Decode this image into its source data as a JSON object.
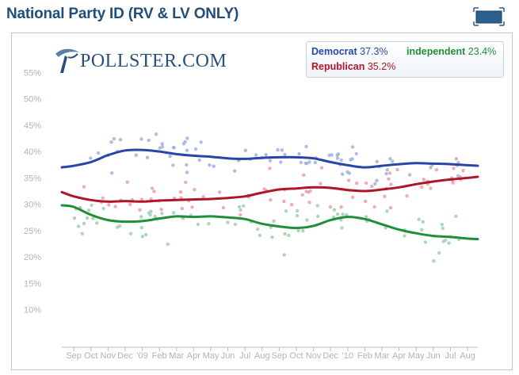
{
  "title": "National Party ID (RV & LV ONLY)",
  "logo_text": "POLLSTER.COM",
  "colors": {
    "democrat": "#2845a8",
    "republican": "#b01527",
    "independent": "#1f8f3a",
    "title": "#1f4e7a"
  },
  "chart_data": {
    "type": "line",
    "title": "National Party ID (RV & LV ONLY)",
    "xlabel": "",
    "ylabel": "",
    "ylim": [
      5,
      60
    ],
    "y_ticks": [
      "55%",
      "50%",
      "45%",
      "40%",
      "35%",
      "30%",
      "25%",
      "20%",
      "15%",
      "10%"
    ],
    "y_tick_values": [
      55,
      50,
      45,
      40,
      35,
      30,
      25,
      20,
      15,
      10
    ],
    "x_ticks": [
      "Sep",
      "Oct",
      "Nov",
      "Dec",
      "'09",
      "Feb",
      "Mar",
      "Apr",
      "May",
      "Jun",
      "Jul",
      "Aug",
      "Sep",
      "Oct",
      "Nov",
      "Dec",
      "'10",
      "Feb",
      "Mar",
      "Apr",
      "May",
      "Jun",
      "Jul",
      "Aug"
    ],
    "x_tick_positions": [
      1,
      2,
      3,
      4,
      5,
      6,
      7,
      8,
      9,
      10,
      11,
      12,
      13,
      14,
      15,
      16,
      17,
      18,
      19,
      20,
      21,
      22,
      23,
      24
    ],
    "xlim": [
      0.3,
      24.6
    ],
    "grid": false,
    "legend_position": "top-right",
    "series": [
      {
        "name": "Democrat",
        "latest": "37.3%",
        "color": "#2845a8",
        "x": [
          0.3,
          1,
          2,
          3,
          4,
          5,
          6,
          7,
          8,
          9,
          10,
          11,
          12,
          13,
          14,
          15,
          16,
          17,
          18,
          19,
          20,
          21,
          22,
          23,
          24,
          24.6
        ],
        "values": [
          37.0,
          37.3,
          38.0,
          39.3,
          40.2,
          40.3,
          40.0,
          39.5,
          39.2,
          39.0,
          38.7,
          38.6,
          38.8,
          38.9,
          38.9,
          38.7,
          38.0,
          37.4,
          37.0,
          37.3,
          37.6,
          37.8,
          37.7,
          37.6,
          37.4,
          37.3
        ]
      },
      {
        "name": "Republican",
        "latest": "35.2%",
        "color": "#b01527",
        "x": [
          0.3,
          1,
          2,
          3,
          4,
          5,
          6,
          7,
          8,
          9,
          10,
          11,
          12,
          13,
          14,
          15,
          16,
          17,
          18,
          19,
          20,
          21,
          22,
          23,
          24,
          24.6
        ],
        "values": [
          32.3,
          31.5,
          30.8,
          30.5,
          30.6,
          30.5,
          30.7,
          30.8,
          30.9,
          31.0,
          31.2,
          31.5,
          32.2,
          32.8,
          33.0,
          33.2,
          33.1,
          32.7,
          32.5,
          32.8,
          33.2,
          33.8,
          34.3,
          34.7,
          35.0,
          35.2
        ]
      },
      {
        "name": "independent",
        "latest": "23.4%",
        "color": "#1f8f3a",
        "x": [
          0.3,
          1,
          2,
          3,
          4,
          5,
          6,
          7,
          8,
          9,
          10,
          11,
          12,
          13,
          14,
          15,
          16,
          17,
          18,
          19,
          20,
          21,
          22,
          23,
          24,
          24.6
        ],
        "values": [
          29.8,
          29.5,
          28.0,
          27.0,
          26.7,
          26.8,
          27.3,
          27.7,
          27.6,
          27.7,
          27.5,
          27.2,
          26.3,
          25.8,
          25.5,
          25.9,
          27.0,
          27.6,
          27.2,
          26.2,
          25.2,
          24.5,
          24.0,
          23.8,
          23.5,
          23.4
        ]
      }
    ]
  }
}
